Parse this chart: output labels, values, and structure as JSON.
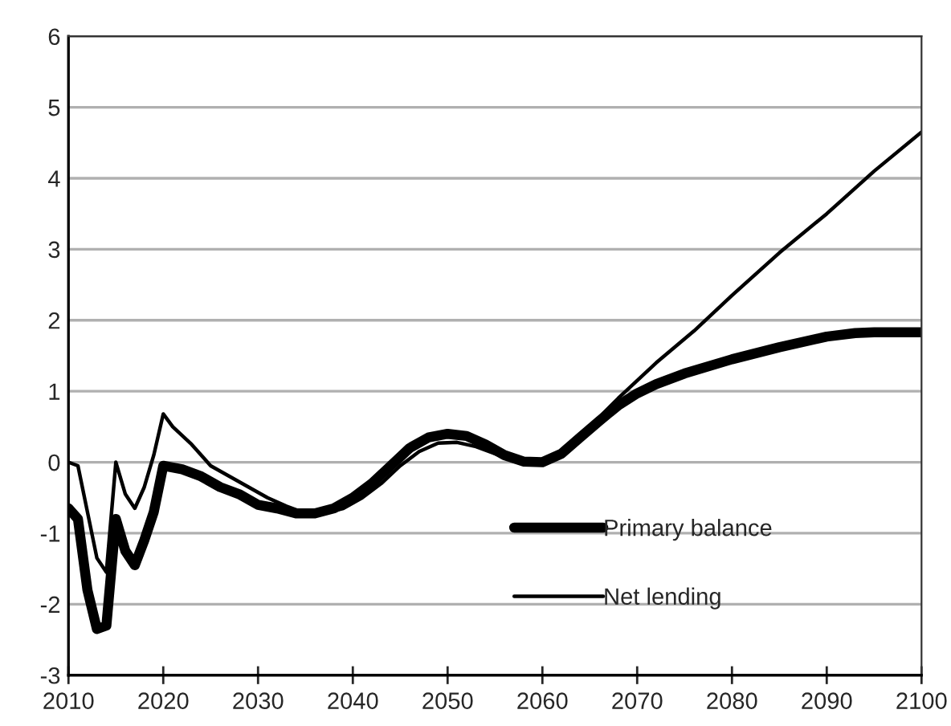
{
  "chart_data": {
    "type": "line",
    "xlim": [
      2010,
      2100
    ],
    "xticks": [
      2010,
      2020,
      2030,
      2040,
      2050,
      2060,
      2070,
      2080,
      2090,
      2100
    ],
    "ylim": [
      -3,
      6
    ],
    "yticks": [
      -3,
      -2,
      -1,
      0,
      1,
      2,
      3,
      4,
      5,
      6
    ],
    "grid": "y",
    "legend": "bottom right",
    "marker": "none",
    "line_style": "solid",
    "series": [
      {
        "name": "Primary balance",
        "color": "#000000",
        "x": [
          2010,
          2011,
          2012,
          2013,
          2014,
          2015,
          2016,
          2017,
          2018,
          2019,
          2020,
          2022,
          2024,
          2026,
          2028,
          2030,
          2032,
          2034,
          2036,
          2038,
          2040,
          2042,
          2044,
          2046,
          2048,
          2050,
          2052,
          2054,
          2056,
          2058,
          2060,
          2062,
          2064,
          2066,
          2068,
          2070,
          2072,
          2075,
          2080,
          2085,
          2090,
          2093,
          2095,
          2100
        ],
        "values": [
          -0.65,
          -0.8,
          -1.8,
          -2.35,
          -2.3,
          -0.8,
          -1.25,
          -1.45,
          -1.1,
          -0.7,
          -0.05,
          -0.1,
          -0.2,
          -0.35,
          -0.45,
          -0.6,
          -0.65,
          -0.72,
          -0.72,
          -0.65,
          -0.5,
          -0.3,
          -0.05,
          0.2,
          0.35,
          0.4,
          0.37,
          0.25,
          0.1,
          0.01,
          0.0,
          0.12,
          0.35,
          0.58,
          0.8,
          0.97,
          1.1,
          1.25,
          1.45,
          1.62,
          1.77,
          1.82,
          1.83,
          1.83
        ]
      },
      {
        "name": "Net lending",
        "color": "#000000",
        "x": [
          2010,
          2011,
          2012,
          2013,
          2014,
          2015,
          2016,
          2017,
          2018,
          2019,
          2020,
          2021,
          2023,
          2025,
          2027,
          2029,
          2031,
          2033,
          2035,
          2037,
          2039,
          2041,
          2043,
          2045,
          2047,
          2049,
          2051,
          2053,
          2055,
          2057,
          2059,
          2061,
          2063,
          2065,
          2068,
          2070,
          2072,
          2076,
          2080,
          2085,
          2090,
          2095,
          2100
        ],
        "values": [
          0.0,
          -0.05,
          -0.7,
          -1.35,
          -1.55,
          0.0,
          -0.45,
          -0.65,
          -0.35,
          0.1,
          0.68,
          0.5,
          0.25,
          -0.05,
          -0.2,
          -0.35,
          -0.5,
          -0.62,
          -0.72,
          -0.72,
          -0.65,
          -0.5,
          -0.3,
          -0.05,
          0.15,
          0.27,
          0.28,
          0.22,
          0.12,
          0.02,
          -0.02,
          0.05,
          0.25,
          0.5,
          0.9,
          1.15,
          1.4,
          1.85,
          2.35,
          2.95,
          3.5,
          4.1,
          4.65
        ]
      }
    ]
  }
}
